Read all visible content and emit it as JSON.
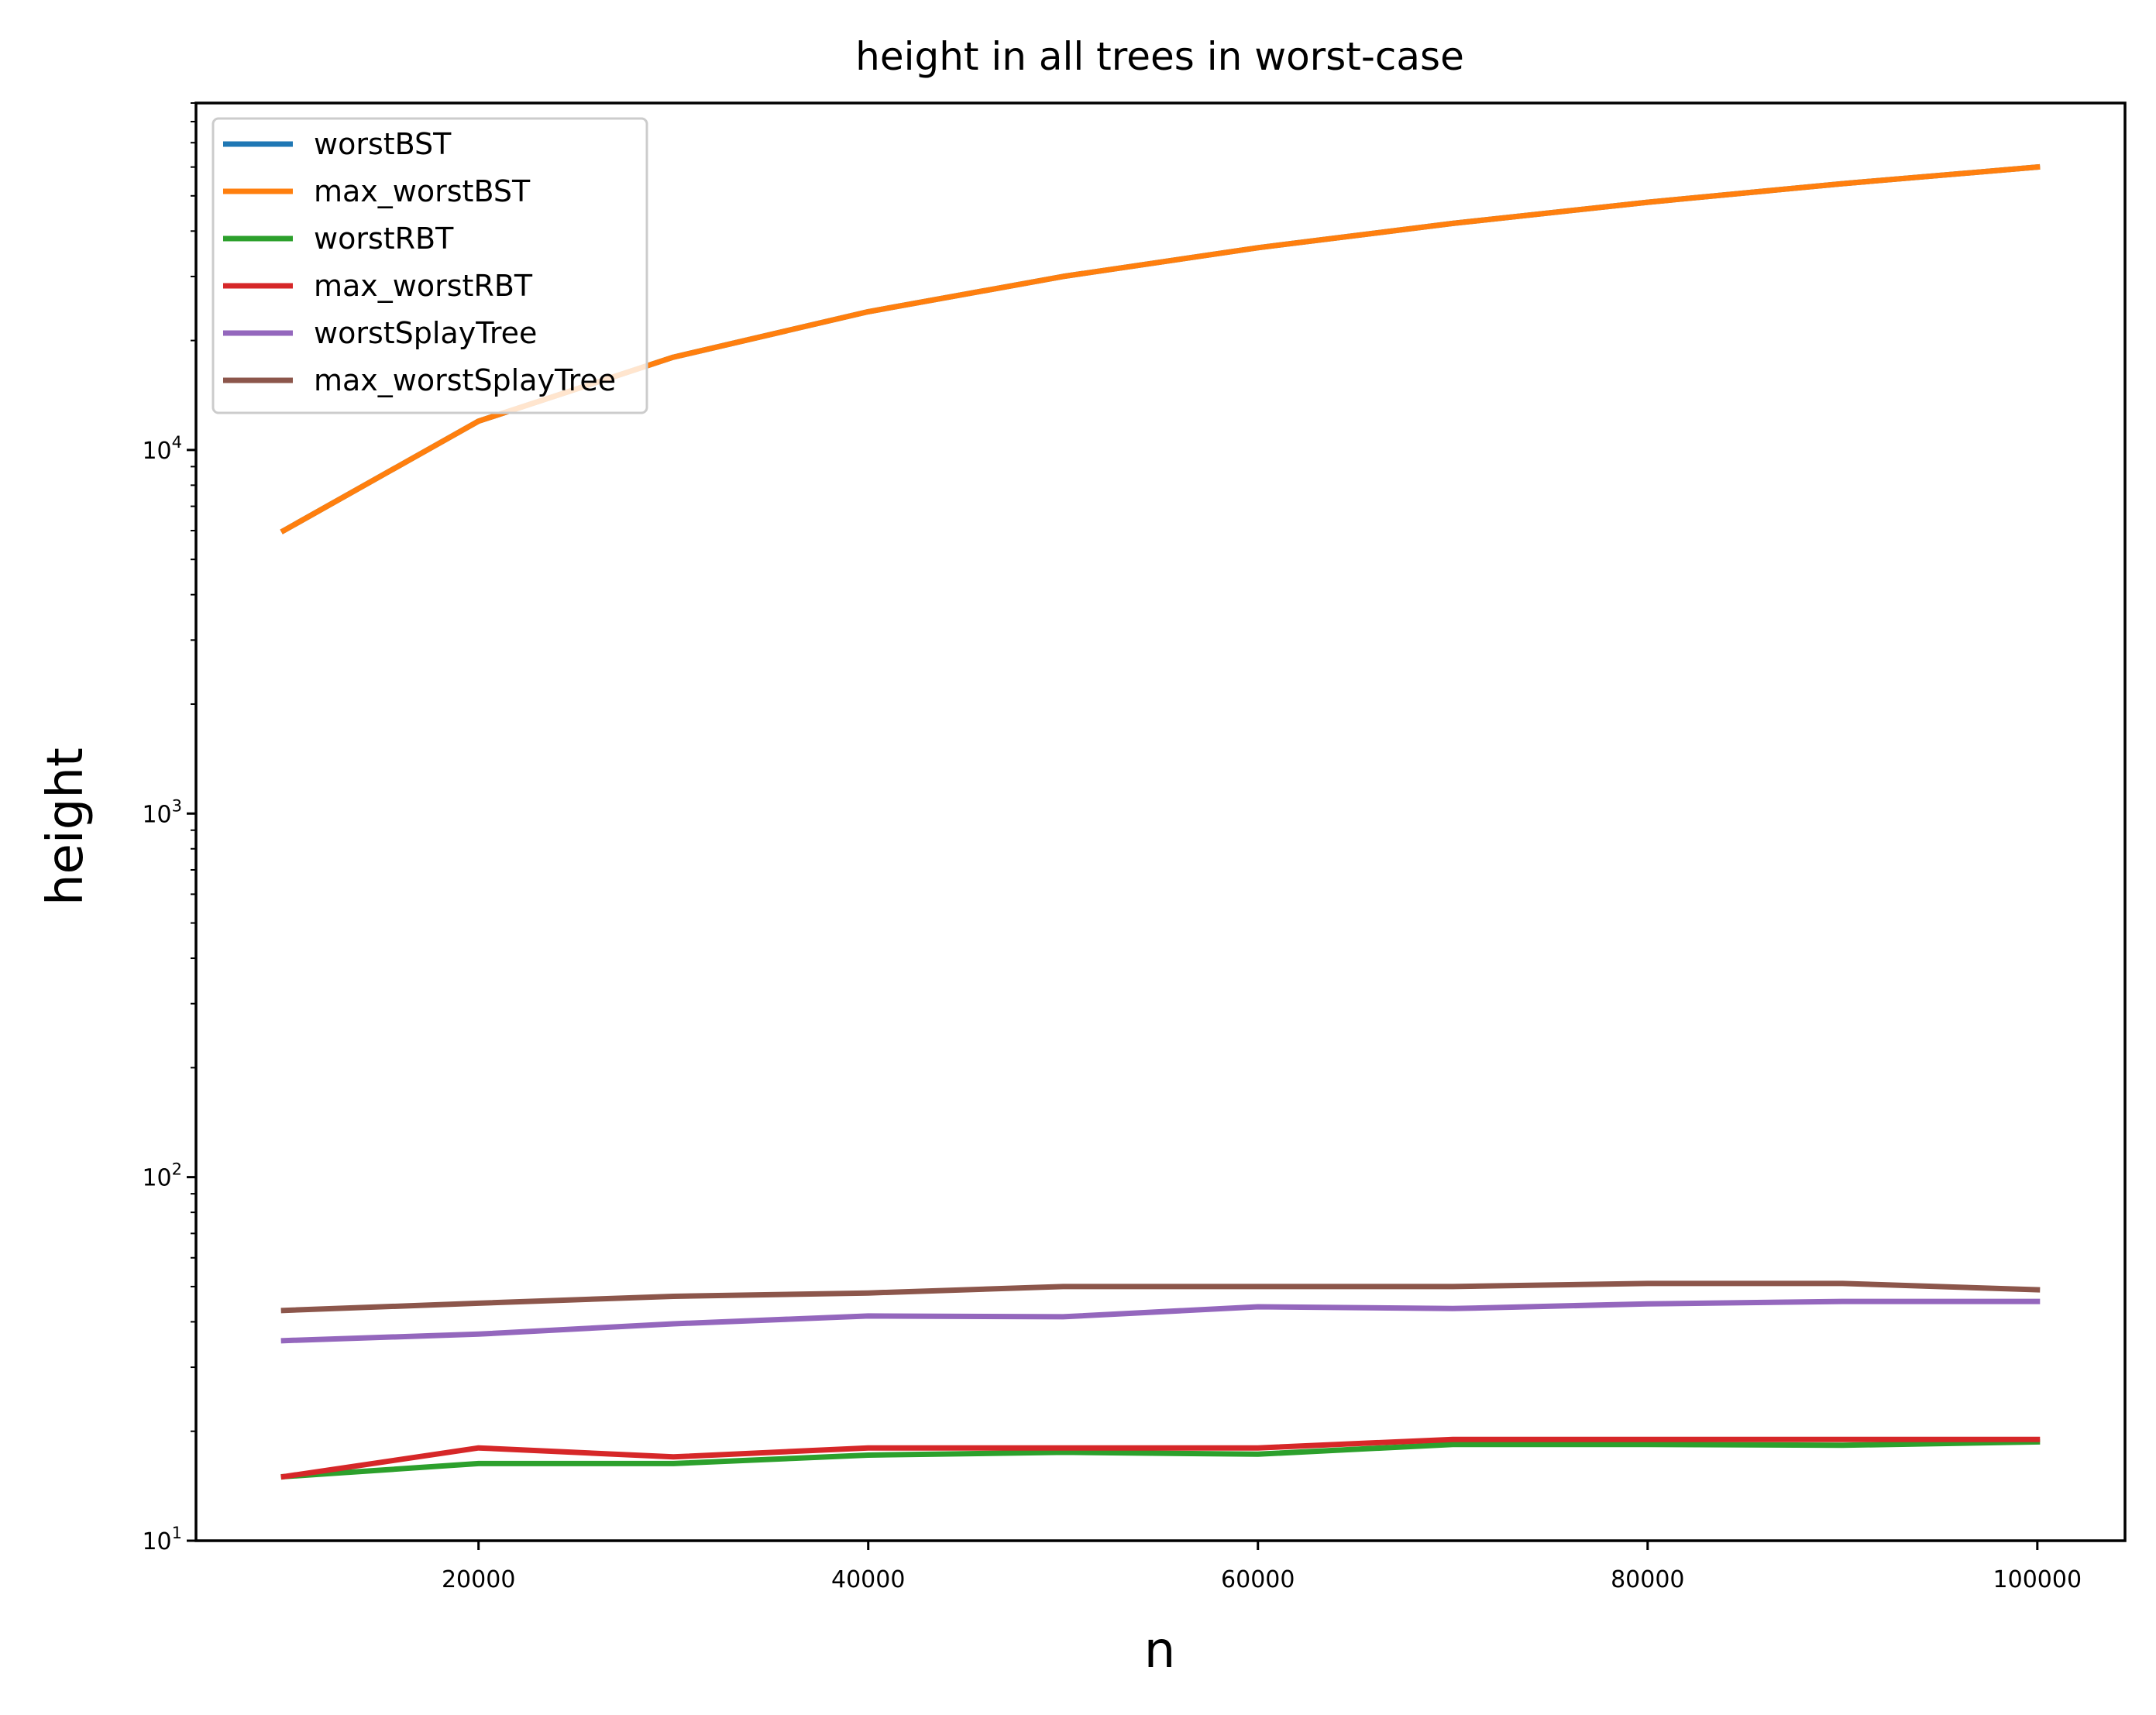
{
  "chart_data": {
    "type": "line",
    "title": "height in all trees in worst-case",
    "xlabel": "n",
    "ylabel": "height",
    "yscale": "log",
    "xlim": [
      5500,
      104500
    ],
    "ylim": [
      10,
      90000
    ],
    "xticks": [
      20000,
      40000,
      60000,
      80000,
      100000
    ],
    "xtick_labels": [
      "20000",
      "40000",
      "60000",
      "80000",
      "100000"
    ],
    "yticks": [
      {
        "value": 10,
        "base": "10",
        "exp": "1"
      },
      {
        "value": 100,
        "base": "10",
        "exp": "2"
      },
      {
        "value": 1000,
        "base": "10",
        "exp": "3"
      },
      {
        "value": 10000,
        "base": "10",
        "exp": "4"
      }
    ],
    "grid": false,
    "legend_position": "top-left",
    "x": [
      10000,
      20000,
      30000,
      40000,
      50000,
      60000,
      70000,
      80000,
      90000,
      100000
    ],
    "series": [
      {
        "name": "worstBST",
        "color": "#1f77b4",
        "values": [
          6000,
          12000,
          18000,
          24000,
          30000,
          36000,
          42000,
          48000,
          54000,
          60000
        ]
      },
      {
        "name": "max_worstBST",
        "color": "#ff7f0e",
        "values": [
          6000,
          12000,
          18000,
          24000,
          30000,
          36000,
          42000,
          48000,
          54000,
          60000
        ]
      },
      {
        "name": "worstRBT",
        "color": "#2ca02c",
        "values": [
          15,
          16.3,
          16.3,
          17.2,
          17.5,
          17.3,
          18.4,
          18.4,
          18.3,
          18.7
        ]
      },
      {
        "name": "max_worstRBT",
        "color": "#d62728",
        "values": [
          15,
          18,
          17,
          18,
          18,
          18,
          19,
          19,
          19,
          19
        ]
      },
      {
        "name": "worstSplayTree",
        "color": "#9467bd",
        "values": [
          35.5,
          37,
          39.5,
          41.5,
          41.3,
          44,
          43.5,
          44.8,
          45.5,
          45.5
        ]
      },
      {
        "name": "max_worstSplayTree",
        "color": "#8c564b",
        "values": [
          43,
          45,
          47,
          48,
          50,
          50,
          50,
          51,
          51,
          49
        ]
      }
    ]
  }
}
